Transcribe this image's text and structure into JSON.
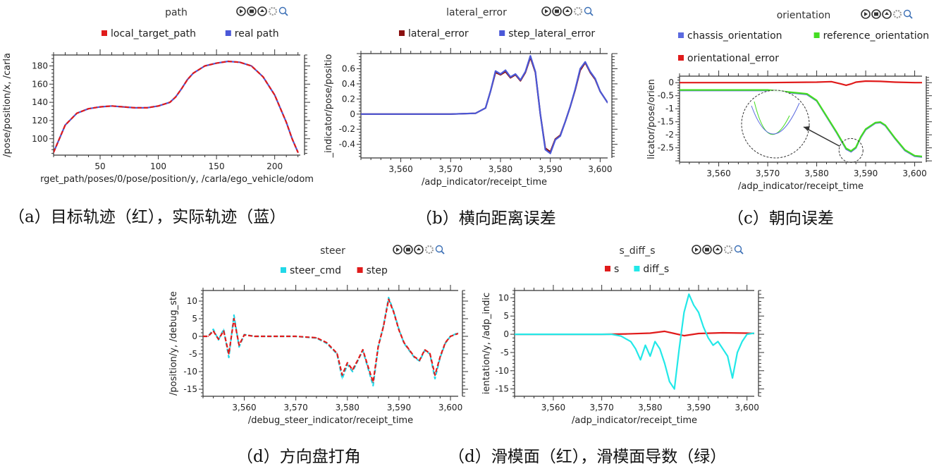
{
  "chart_data": [
    {
      "id": "a",
      "type": "line",
      "title": "path",
      "caption": "（a）目标轨迹（红），实际轨迹（蓝）",
      "xlabel": "rget_path/poses/0/pose/position/y, /carla/ego_vehicle/odom",
      "ylabel": "/pose/position/x, /carla",
      "xlim": [
        10,
        222
      ],
      "ylim": [
        82,
        192
      ],
      "xticks": [
        50,
        100,
        150,
        200
      ],
      "yticks": [
        100,
        120,
        140,
        160,
        180
      ],
      "legend": {
        "position": "top"
      },
      "series": [
        {
          "name": "local_target_path",
          "color": "#e01b1b",
          "dashed": true,
          "x": [
            10,
            20,
            30,
            40,
            50,
            60,
            70,
            80,
            90,
            100,
            110,
            115,
            120,
            125,
            130,
            140,
            150,
            160,
            170,
            180,
            190,
            200,
            210,
            215,
            220
          ],
          "y": [
            85,
            115,
            128,
            133,
            135,
            136,
            135,
            134,
            134,
            136,
            140,
            146,
            155,
            165,
            172,
            180,
            183,
            185,
            184,
            180,
            168,
            148,
            118,
            100,
            85
          ]
        },
        {
          "name": "real path",
          "color": "#4a58d8",
          "x": [
            10,
            20,
            30,
            40,
            50,
            60,
            70,
            80,
            90,
            100,
            110,
            115,
            120,
            125,
            130,
            140,
            150,
            160,
            170,
            180,
            190,
            200,
            210,
            215,
            220
          ],
          "y": [
            85,
            115,
            128,
            133,
            135,
            136,
            135,
            134,
            134,
            136,
            140,
            146,
            155,
            165,
            172,
            180,
            183,
            185,
            184,
            180,
            168,
            148,
            118,
            100,
            85
          ]
        }
      ]
    },
    {
      "id": "b",
      "type": "line",
      "title": "lateral_error",
      "caption": "（b）横向距离误差",
      "xlabel": "/adp_indicator/receipt_time",
      "ylabel": "_indicator/pose/positio",
      "xlim": [
        3552,
        3601.5
      ],
      "ylim": [
        -0.58,
        0.8
      ],
      "xticks": [
        3560,
        3570,
        3580,
        3590,
        3600
      ],
      "xtick_labels": [
        "3,560",
        "3,570",
        "3,580",
        "3,590",
        "3,600"
      ],
      "yticks": [
        -0.4,
        -0.2,
        0,
        0.2,
        0.4,
        0.6
      ],
      "legend": {
        "position": "top"
      },
      "series": [
        {
          "name": "lateral_error",
          "color": "#8b1010",
          "x": [
            3552,
            3560,
            3570,
            3575,
            3577,
            3578,
            3579,
            3580,
            3581,
            3582,
            3583,
            3584,
            3585,
            3586,
            3587,
            3588,
            3589,
            3590,
            3591,
            3592,
            3593,
            3594,
            3595,
            3596,
            3597,
            3598,
            3599,
            3600,
            3601.5
          ],
          "y": [
            0,
            0,
            0,
            0.01,
            0.08,
            0.3,
            0.55,
            0.52,
            0.56,
            0.48,
            0.52,
            0.44,
            0.55,
            0.75,
            0.55,
            0.0,
            -0.45,
            -0.5,
            -0.33,
            -0.28,
            -0.1,
            0.1,
            0.32,
            0.58,
            0.68,
            0.55,
            0.46,
            0.3,
            0.15
          ]
        },
        {
          "name": "step_lateral_error",
          "color": "#4a58d8",
          "x": [
            3552,
            3560,
            3570,
            3575,
            3577,
            3578,
            3579,
            3580,
            3581,
            3582,
            3583,
            3584,
            3585,
            3586,
            3587,
            3588,
            3589,
            3590,
            3591,
            3592,
            3593,
            3594,
            3595,
            3596,
            3597,
            3598,
            3599,
            3600,
            3601.5
          ],
          "y": [
            0,
            0,
            0,
            0.01,
            0.08,
            0.3,
            0.57,
            0.53,
            0.58,
            0.49,
            0.53,
            0.45,
            0.56,
            0.77,
            0.56,
            0.0,
            -0.47,
            -0.52,
            -0.34,
            -0.29,
            -0.1,
            0.1,
            0.33,
            0.6,
            0.69,
            0.56,
            0.47,
            0.3,
            0.15
          ]
        }
      ]
    },
    {
      "id": "c",
      "type": "line",
      "title": "orientation",
      "caption": "（c）朝向误差",
      "xlabel": "/adp_indicator/receipt_time",
      "ylabel": "licator/pose/orien",
      "xlim": [
        3552,
        3601.5
      ],
      "ylim": [
        -3.05,
        0.25
      ],
      "xticks": [
        3560,
        3570,
        3580,
        3590,
        3600
      ],
      "xtick_labels": [
        "3,560",
        "3,570",
        "3,580",
        "3,590",
        "3,600"
      ],
      "yticks": [
        -2.5,
        -2,
        -1.5,
        -1,
        -0.5,
        0
      ],
      "ytick_labels": [
        "-2.5",
        "-2",
        "-1.5",
        "-1",
        "-0.5",
        "0"
      ],
      "legend": {
        "position": "top"
      },
      "series": [
        {
          "name": "chassis_orientation",
          "color": "#5b6ae0",
          "x": [
            3552,
            3570,
            3578,
            3580,
            3582,
            3584,
            3586,
            3587,
            3588,
            3589,
            3590,
            3592,
            3593,
            3594,
            3596,
            3598,
            3600,
            3601.5
          ],
          "y": [
            -0.3,
            -0.3,
            -0.45,
            -0.7,
            -1.3,
            -1.9,
            -2.55,
            -2.65,
            -2.5,
            -2.1,
            -1.8,
            -1.55,
            -1.53,
            -1.65,
            -2.15,
            -2.6,
            -2.82,
            -2.85
          ]
        },
        {
          "name": "reference_orientation",
          "color": "#44dd22",
          "x": [
            3552,
            3570,
            3578,
            3580,
            3582,
            3584,
            3586,
            3587,
            3588,
            3589,
            3590,
            3592,
            3593,
            3594,
            3596,
            3598,
            3600,
            3601.5
          ],
          "y": [
            -0.28,
            -0.28,
            -0.43,
            -0.68,
            -1.28,
            -1.88,
            -2.52,
            -2.62,
            -2.48,
            -2.08,
            -1.78,
            -1.53,
            -1.51,
            -1.63,
            -2.13,
            -2.58,
            -2.8,
            -2.83
          ]
        },
        {
          "name": "orientational_error",
          "color": "#e01b1b",
          "x": [
            3552,
            3570,
            3580,
            3583,
            3585,
            3586,
            3587,
            3588,
            3590,
            3593,
            3596,
            3600,
            3601.5
          ],
          "y": [
            0,
            0,
            0.02,
            0.04,
            -0.05,
            -0.1,
            -0.05,
            0.02,
            0.06,
            0.05,
            0.02,
            0,
            0
          ]
        }
      ]
    },
    {
      "id": "d1",
      "type": "line",
      "title": "steer",
      "caption": "（d）方向盘打角",
      "xlabel": "/debug_steer_indicator/receipt_time",
      "ylabel": "/position/y, /debug_ste",
      "xlim": [
        3552,
        3601.5
      ],
      "ylim": [
        -17,
        13
      ],
      "xticks": [
        3560,
        3570,
        3580,
        3590,
        3600
      ],
      "xtick_labels": [
        "3,560",
        "3,570",
        "3,580",
        "3,590",
        "3,600"
      ],
      "yticks": [
        -15,
        -10,
        -5,
        0,
        5,
        10
      ],
      "legend": {
        "position": "top"
      },
      "series": [
        {
          "name": "steer_cmd",
          "color": "#22d8e8",
          "dashed": true,
          "x": [
            3552,
            3553,
            3554,
            3555,
            3556,
            3557,
            3558,
            3559,
            3560,
            3562,
            3570,
            3574,
            3576,
            3578,
            3579,
            3580,
            3581,
            3582,
            3583,
            3584,
            3585,
            3586,
            3587,
            3588,
            3589,
            3590,
            3591,
            3592,
            3593,
            3594,
            3595,
            3596,
            3597,
            3598,
            3599,
            3600,
            3601.5
          ],
          "y": [
            0,
            0,
            2,
            -1,
            2,
            -6,
            6,
            -3,
            0.5,
            0,
            0,
            -0.5,
            -2,
            -5,
            -12,
            -8,
            -10,
            -7,
            -4,
            -9,
            -14,
            -3,
            3,
            11,
            7,
            2,
            -2,
            -4,
            -6,
            -7,
            -4,
            -5,
            -12,
            -6,
            -2,
            0,
            1
          ]
        },
        {
          "name": "step",
          "color": "#e01b1b",
          "dashed": true,
          "x": [
            3552,
            3553,
            3554,
            3555,
            3556,
            3557,
            3558,
            3559,
            3560,
            3562,
            3570,
            3574,
            3576,
            3578,
            3579,
            3580,
            3581,
            3582,
            3583,
            3584,
            3585,
            3586,
            3587,
            3588,
            3589,
            3590,
            3591,
            3592,
            3593,
            3594,
            3595,
            3596,
            3597,
            3598,
            3599,
            3600,
            3601.5
          ],
          "y": [
            0,
            0,
            1.5,
            -0.8,
            1.5,
            -5,
            5,
            -2.5,
            0.4,
            0,
            0,
            -0.4,
            -1.8,
            -4.8,
            -11,
            -7.5,
            -9.5,
            -6.8,
            -3.8,
            -8.5,
            -13,
            -2.8,
            2.8,
            10.5,
            6.8,
            1.8,
            -1.8,
            -3.8,
            -5.8,
            -6.8,
            -3.8,
            -4.8,
            -11,
            -5.8,
            -1.8,
            0,
            0.8
          ]
        }
      ]
    },
    {
      "id": "d2",
      "type": "line",
      "title": "s_diff_s",
      "caption": "（d）滑模面（红），滑模面导数（绿）",
      "xlabel": "/adp_indicator/receipt_time",
      "ylabel": "ientation/y, /adp_indic",
      "xlim": [
        3552,
        3601.5
      ],
      "ylim": [
        -17,
        12
      ],
      "xticks": [
        3560,
        3570,
        3580,
        3590,
        3600
      ],
      "xtick_labels": [
        "3,560",
        "3,570",
        "3,580",
        "3,590",
        "3,600"
      ],
      "yticks": [
        -15,
        -10,
        -5,
        0,
        5,
        10
      ],
      "legend": {
        "position": "top"
      },
      "series": [
        {
          "name": "s",
          "color": "#e01b1b",
          "x": [
            3552,
            3570,
            3575,
            3580,
            3583,
            3585,
            3587,
            3590,
            3595,
            3600,
            3601.5
          ],
          "y": [
            0,
            0,
            0.1,
            0.3,
            0.8,
            0.2,
            -0.4,
            0.2,
            0.4,
            0.3,
            0.2
          ]
        },
        {
          "name": "diff_s",
          "color": "#22e8e8",
          "x": [
            3552,
            3572,
            3574,
            3576,
            3577,
            3578,
            3579,
            3580,
            3581,
            3582,
            3583,
            3584,
            3585,
            3586,
            3587,
            3588,
            3589,
            3590,
            3591,
            3592,
            3593,
            3594,
            3595,
            3596,
            3597,
            3598,
            3599,
            3600,
            3601.5
          ],
          "y": [
            0,
            0,
            -0.5,
            -2,
            -4,
            -7,
            -3,
            -6,
            -2,
            -4,
            -8,
            -13,
            -15,
            -4,
            6,
            11,
            8,
            6,
            2,
            -1,
            -3,
            -2,
            -4,
            -6,
            -12,
            -5,
            -2,
            0,
            0.3
          ]
        }
      ]
    }
  ]
}
